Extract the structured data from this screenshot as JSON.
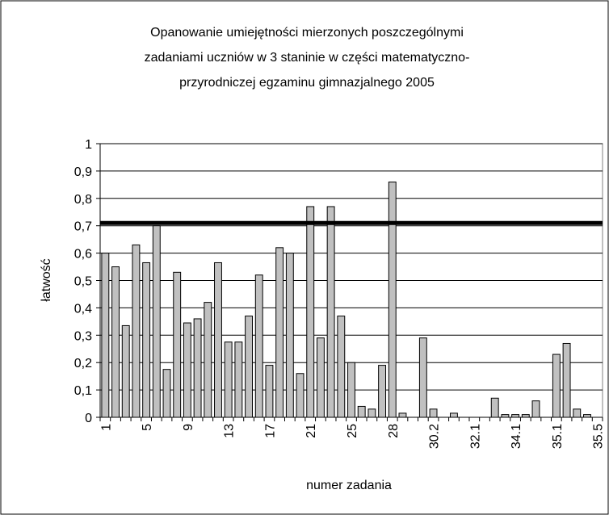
{
  "chart_data": {
    "type": "bar",
    "title": [
      "Opanowanie umiejętności mierzonych poszczególnymi",
      "zadaniami uczniów w 3 staninie w części matematyczno-",
      "przyrodniczej egzaminu gimnazjalnego 2005"
    ],
    "xlabel": "numer zadania",
    "ylabel": "łatwość",
    "categories": [
      "1",
      null,
      null,
      null,
      "5",
      null,
      null,
      null,
      "9",
      null,
      null,
      null,
      "13",
      null,
      null,
      null,
      "17",
      null,
      null,
      null,
      "21",
      null,
      null,
      null,
      "25",
      null,
      null,
      null,
      "28",
      null,
      null,
      null,
      "30.2",
      null,
      null,
      null,
      "32.1",
      null,
      null,
      null,
      "34.1",
      null,
      null,
      null,
      "35.1",
      null,
      null,
      null,
      "35.5"
    ],
    "values": [
      0.6,
      0.55,
      0.335,
      0.63,
      0.565,
      0.7,
      0.175,
      0.53,
      0.345,
      0.36,
      0.42,
      0.565,
      0.275,
      0.275,
      0.37,
      0.52,
      0.19,
      0.62,
      0.6,
      0.16,
      0.77,
      0.29,
      0.77,
      0.37,
      0.2,
      0.04,
      0.03,
      0.19,
      0.86,
      0.015,
      0,
      0.29,
      0.03,
      0,
      0.015,
      0,
      0,
      0,
      0.07,
      0.01,
      0.01,
      0.01,
      0.06,
      0,
      0.23,
      0.27,
      0.03,
      0.01,
      0
    ],
    "color": "#c0c0c0",
    "reference_line": 0.71,
    "reference_color": "#000000",
    "ylim": [
      0,
      1
    ],
    "yticks": [
      0,
      {
        "value": 0.1,
        "label": "0,1"
      },
      {
        "value": 0.2,
        "label": "0,2"
      },
      {
        "value": 0.3,
        "label": "0,3"
      },
      {
        "value": 0.4,
        "label": "0,4"
      },
      {
        "value": 0.5,
        "label": "0,5"
      },
      {
        "value": 0.6,
        "label": "0,6"
      },
      {
        "value": 0.7,
        "label": "0,7"
      },
      {
        "value": 0.8,
        "label": "0,8"
      },
      {
        "value": 0.9,
        "label": "0,9"
      },
      1
    ],
    "grid": true
  }
}
